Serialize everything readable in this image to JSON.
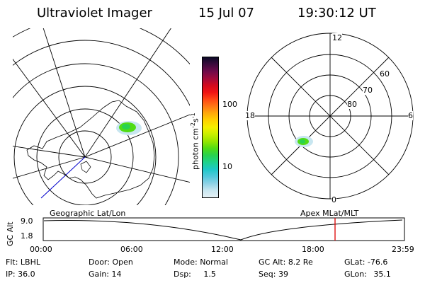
{
  "header": {
    "instrument": "Ultraviolet Imager",
    "date": "15 Jul 07",
    "time": "19:30:12 UT"
  },
  "colorbar": {
    "label_base": "photon cm",
    "label_exp1": "-2",
    "label_s": "s",
    "label_exp2": "-1",
    "ticks": [
      "100",
      "10"
    ],
    "colors": [
      "#0a0a26",
      "#3c0a3c",
      "#6e0a4a",
      "#a00a3c",
      "#d20a1e",
      "#f01414",
      "#ff4614",
      "#ff7814",
      "#ffaa0a",
      "#ffd200",
      "#f5f000",
      "#c8f000",
      "#96e600",
      "#50dc14",
      "#28d250",
      "#1ed28c",
      "#1ec8c8",
      "#50c8dc",
      "#8cd2e6",
      "#c8e6f0",
      "#e6f0f5"
    ]
  },
  "map_labels": {
    "left": "Geographic Lat/Lon",
    "right": "Apex MLat/MLT"
  },
  "polar": {
    "mlt_labels": {
      "top": "12",
      "left": "18",
      "right": "6",
      "bottom": "0"
    },
    "lat_labels": [
      "60",
      "70",
      "80"
    ]
  },
  "altitude_plot": {
    "ylabel": "GC Alt",
    "yticks": [
      "9.0",
      "1.8"
    ],
    "xticks": [
      "00:00",
      "06:00",
      "12:00",
      "18:00",
      "23:59"
    ],
    "current_time_marker": "19:30"
  },
  "footer": {
    "row1": [
      {
        "key": "Flt:",
        "value": "LBHL"
      },
      {
        "key": "Door:",
        "value": "Open"
      },
      {
        "key": "Mode:",
        "value": "Normal"
      },
      {
        "key": "GC Alt:",
        "value": "8.2 Re"
      },
      {
        "key": "GLat:",
        "value": "-76.6"
      }
    ],
    "row2": [
      {
        "key": "IP:",
        "value": "36.0"
      },
      {
        "key": "Gain:",
        "value": "14"
      },
      {
        "key": "Dsp:",
        "value": "1.5"
      },
      {
        "key": "Seq:",
        "value": "39"
      },
      {
        "key": "GLon:",
        "value": "35.1"
      }
    ]
  },
  "colors": {
    "grid": "#000000",
    "blue_line": "#0000cc",
    "marker": "#dd0000"
  }
}
